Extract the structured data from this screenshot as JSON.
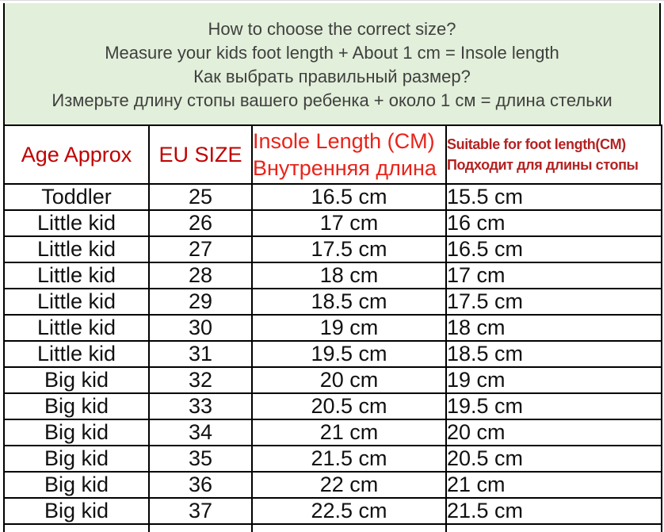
{
  "notice": {
    "lines": [
      "How to choose the correct size?",
      "Measure your kids foot length + About 1 cm = Insole length",
      "Как выбрать правильный размер?",
      "Измерьте длину стопы вашего ребенка + около 1 см = длина стельки"
    ]
  },
  "table": {
    "columns": [
      {
        "label": "Age Approx"
      },
      {
        "label": "EU SIZE"
      },
      {
        "label_en": "Insole Length (CM)",
        "label_ru": "Внутренняя длина"
      },
      {
        "label_en": "Suitable for foot length(CM)",
        "label_ru": "Подходит для длины стопы"
      }
    ],
    "rows": [
      {
        "age": "Toddler",
        "eu": "25",
        "insole": "16.5 cm",
        "foot": "15.5 cm"
      },
      {
        "age": "Little kid",
        "eu": "26",
        "insole": "17 cm",
        "foot": "16 cm"
      },
      {
        "age": "Little kid",
        "eu": "27",
        "insole": "17.5 cm",
        "foot": "16.5 cm"
      },
      {
        "age": "Little kid",
        "eu": "28",
        "insole": "18 cm",
        "foot": "17 cm"
      },
      {
        "age": "Little kid",
        "eu": "29",
        "insole": "18.5 cm",
        "foot": "17.5 cm"
      },
      {
        "age": "Little kid",
        "eu": "30",
        "insole": "19 cm",
        "foot": "18 cm"
      },
      {
        "age": "Little kid",
        "eu": "31",
        "insole": "19.5 cm",
        "foot": "18.5 cm"
      },
      {
        "age": "Big kid",
        "eu": "32",
        "insole": "20 cm",
        "foot": "19 cm"
      },
      {
        "age": "Big kid",
        "eu": "33",
        "insole": "20.5 cm",
        "foot": "19.5 cm"
      },
      {
        "age": "Big kid",
        "eu": "34",
        "insole": "21 cm",
        "foot": "20 cm"
      },
      {
        "age": "Big kid",
        "eu": "35",
        "insole": "21.5 cm",
        "foot": "20.5 cm"
      },
      {
        "age": "Big kid",
        "eu": "36",
        "insole": "22 cm",
        "foot": "21 cm"
      },
      {
        "age": "Big kid",
        "eu": "37",
        "insole": "22.5 cm",
        "foot": "21.5 cm"
      }
    ]
  },
  "colors": {
    "notice_background": "#E2EFDA",
    "notice_text": "#404040",
    "header_red_dark": "#C00000",
    "header_red_bright": "#E8231A",
    "header_red_muted": "#B42222",
    "cell_text": "#111111",
    "border": "#000000"
  }
}
